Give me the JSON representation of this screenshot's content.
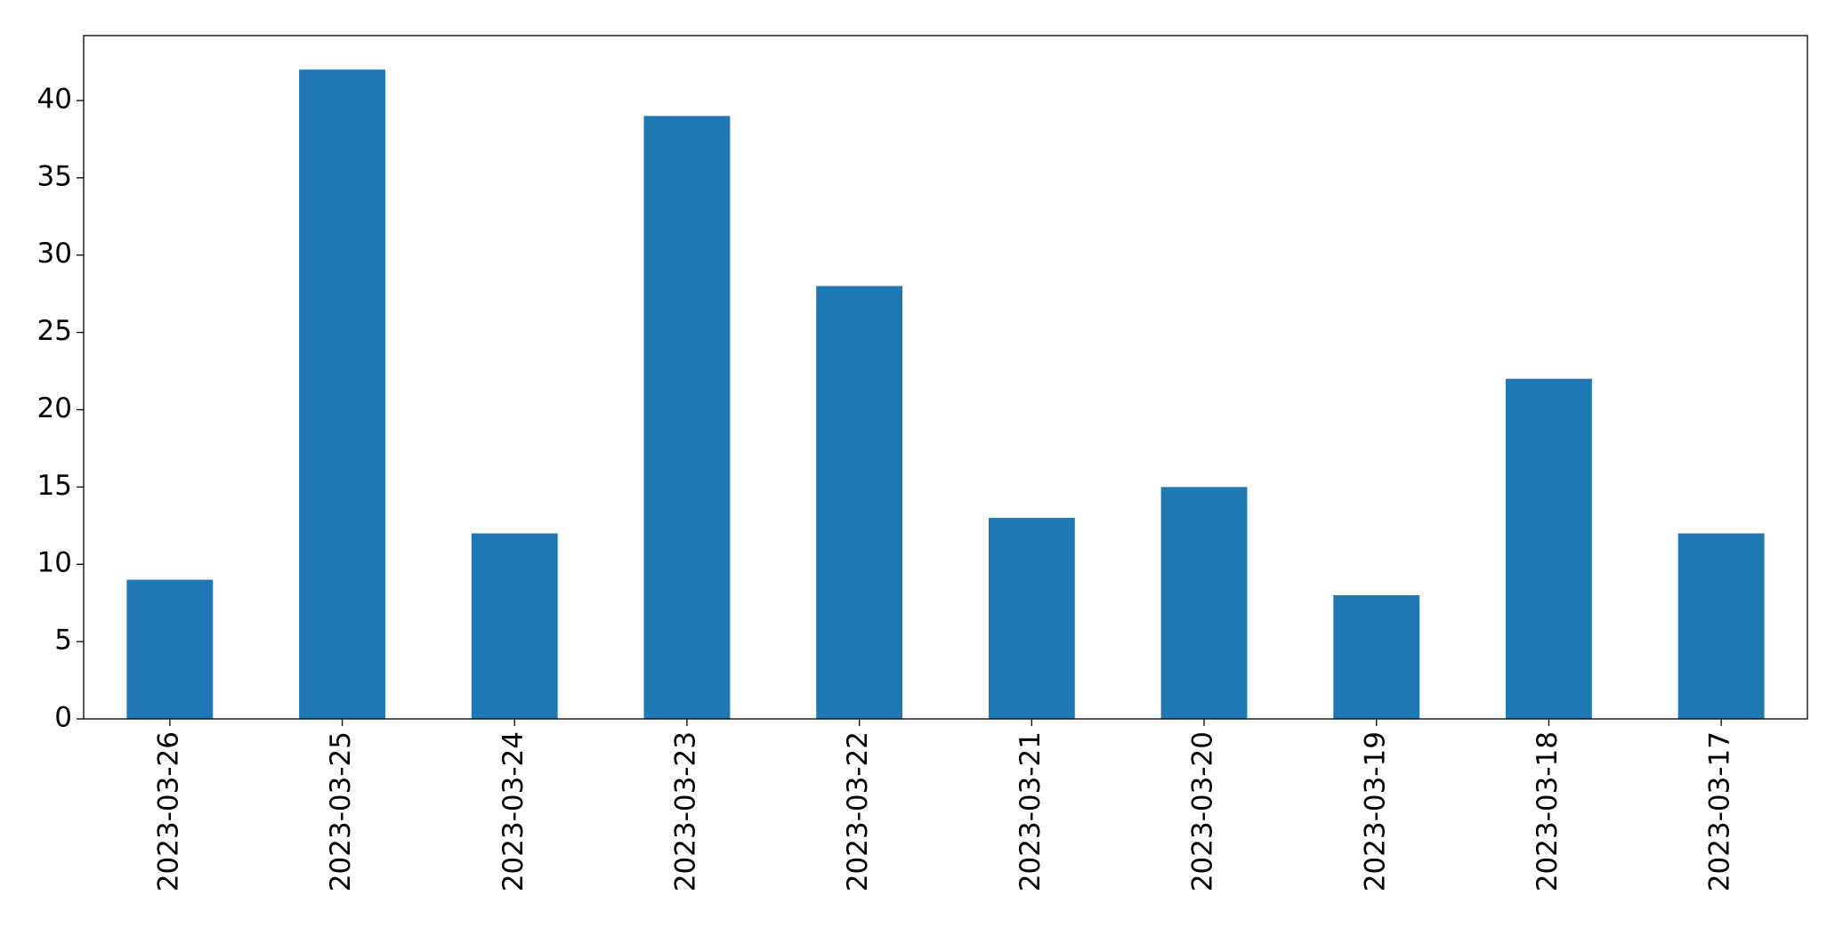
{
  "chart_data": {
    "type": "bar",
    "categories": [
      "2023-03-26",
      "2023-03-25",
      "2023-03-24",
      "2023-03-23",
      "2023-03-22",
      "2023-03-21",
      "2023-03-20",
      "2023-03-19",
      "2023-03-18",
      "2023-03-17"
    ],
    "values": [
      9,
      42,
      12,
      39,
      28,
      13,
      15,
      8,
      22,
      12
    ],
    "color": "#1f77b4",
    "ylim": [
      0,
      44.2
    ],
    "yticks": [
      0,
      5,
      10,
      15,
      20,
      25,
      30,
      35,
      40
    ],
    "grid": false
  }
}
